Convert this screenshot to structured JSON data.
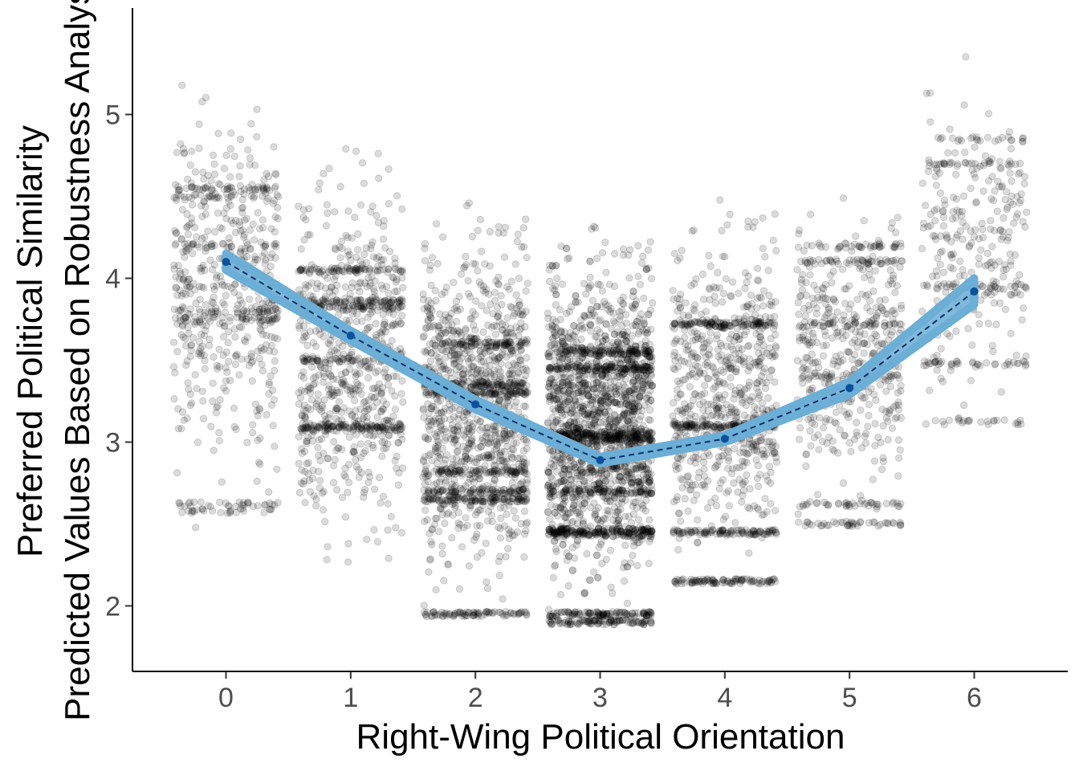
{
  "chart_data": {
    "type": "scatter",
    "xlabel": "Right-Wing Political Orientation",
    "ylabel_lines": [
      "Preferred Political Similarity",
      "Predicted Values Based on Robustness Analysis"
    ],
    "xlim": [
      -0.75,
      6.75
    ],
    "ylim": [
      1.6,
      5.65
    ],
    "x_ticks": [
      0,
      1,
      2,
      3,
      4,
      5,
      6
    ],
    "y_ticks": [
      2,
      3,
      4,
      5
    ],
    "grid": false,
    "colors": {
      "points": "#000000",
      "ribbon": "#6baed6",
      "line": "#08306b",
      "axis": "#000000",
      "tick_text": "#4d4d4d"
    },
    "jitter_groups": [
      {
        "x": 0,
        "count": 700,
        "y_range": [
          2.4,
          5.4
        ],
        "bands": [
          4.55,
          4.5,
          4.2,
          3.95,
          3.8,
          3.75,
          2.62,
          2.58
        ]
      },
      {
        "x": 1,
        "count": 1000,
        "y_range": [
          2.05,
          4.95
        ],
        "bands": [
          4.05,
          3.86,
          3.82,
          3.5,
          3.1,
          3.08
        ]
      },
      {
        "x": 2,
        "count": 1600,
        "y_range": [
          1.9,
          4.6
        ],
        "bands": [
          3.6,
          3.35,
          3.3,
          2.82,
          2.7,
          2.65,
          1.95
        ]
      },
      {
        "x": 3,
        "count": 2600,
        "y_range": [
          1.88,
          4.45
        ],
        "bands": [
          3.55,
          3.45,
          3.05,
          3.02,
          2.7,
          2.46,
          2.44,
          1.95,
          1.9
        ]
      },
      {
        "x": 4,
        "count": 1100,
        "y_range": [
          2.05,
          4.62
        ],
        "bands": [
          3.72,
          3.1,
          2.45,
          2.15
        ]
      },
      {
        "x": 5,
        "count": 650,
        "y_range": [
          2.48,
          4.6
        ],
        "bands": [
          4.2,
          4.1,
          3.72,
          3.4,
          2.62,
          2.5
        ]
      },
      {
        "x": 6,
        "count": 400,
        "y_range": [
          2.95,
          5.5
        ],
        "bands": [
          4.85,
          4.7,
          3.95,
          3.48,
          3.12
        ]
      }
    ],
    "series": [
      {
        "type": "line",
        "x": [
          0,
          1,
          2,
          3,
          4,
          5,
          6
        ],
        "values": [
          4.1,
          3.65,
          3.23,
          2.89,
          3.02,
          3.33,
          3.92
        ],
        "ci_lower": [
          4.05,
          3.62,
          3.2,
          2.87,
          3.0,
          3.29,
          3.84
        ],
        "ci_upper": [
          4.15,
          3.68,
          3.26,
          2.91,
          3.04,
          3.37,
          4.0
        ]
      }
    ]
  }
}
